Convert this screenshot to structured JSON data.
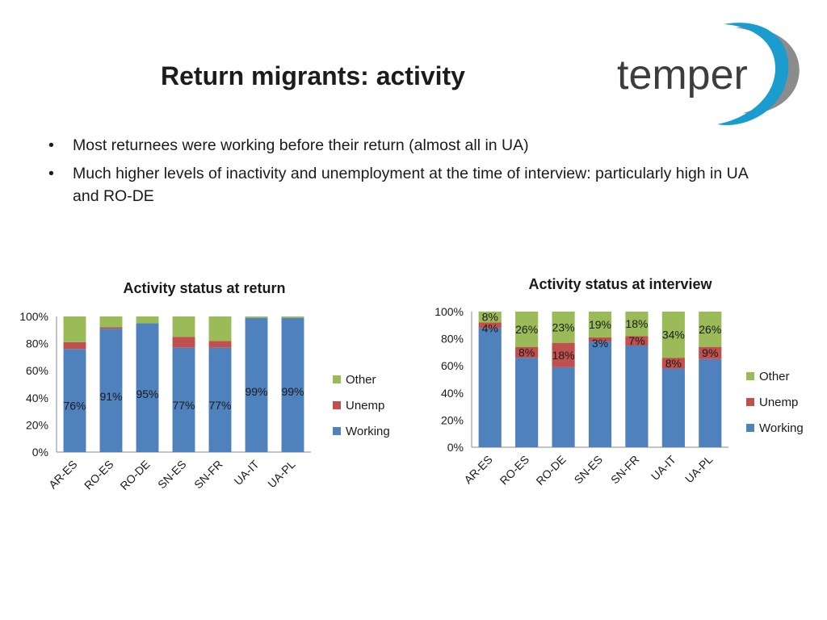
{
  "slide": {
    "title": "Return migrants: activity",
    "logo_text": "temper",
    "bullets": [
      "Most returnees were working before their return (almost all in UA)",
      "Much higher levels of inactivity and unemployment at the time of interview: particularly high in UA and RO-DE"
    ],
    "bullet_symbol": "•"
  },
  "colors": {
    "working": "#4f81bd",
    "unemp": "#c0504d",
    "other": "#9bbb59",
    "logo_text": "#3d3d3d",
    "logo_swoosh_blue": "#1a9ccf",
    "logo_swoosh_grey": "#8c8c8c"
  },
  "chart_data": [
    {
      "type": "bar",
      "stacked": true,
      "title": "Activity status at return",
      "categories": [
        "AR-ES",
        "RO-ES",
        "RO-DE",
        "SN-ES",
        "SN-FR",
        "UA-IT",
        "UA-PL"
      ],
      "series": [
        {
          "name": "Working",
          "values": [
            76,
            91,
            95,
            77,
            77,
            99,
            99
          ],
          "labels": [
            "76%",
            "91%",
            "95%",
            "77%",
            "77%",
            "99%",
            "99%"
          ]
        },
        {
          "name": "Unemp",
          "values": [
            5,
            1,
            0,
            8,
            5,
            0,
            0
          ],
          "labels": [
            "",
            "",
            "",
            "",
            "",
            "",
            ""
          ]
        },
        {
          "name": "Other",
          "values": [
            19,
            8,
            5,
            15,
            18,
            1,
            1
          ],
          "labels": [
            "",
            "",
            "",
            "",
            "",
            "",
            ""
          ]
        }
      ],
      "y_ticks": [
        "0%",
        "20%",
        "40%",
        "60%",
        "80%",
        "100%"
      ],
      "ylim": [
        0,
        100
      ],
      "grid": false,
      "legend_position": "right"
    },
    {
      "type": "bar",
      "stacked": true,
      "title": "Activity status at interview",
      "categories": [
        "AR-ES",
        "RO-ES",
        "RO-DE",
        "SN-ES",
        "SN-FR",
        "UA-IT",
        "UA-PL"
      ],
      "series": [
        {
          "name": "Working",
          "values": [
            88,
            66,
            59,
            78,
            75,
            58,
            65
          ],
          "labels": [
            "",
            "",
            "",
            "",
            "",
            "",
            ""
          ]
        },
        {
          "name": "Unemp",
          "values": [
            4,
            8,
            18,
            3,
            7,
            8,
            9
          ],
          "labels": [
            "4%",
            "8%",
            "18%",
            "3%",
            "7%",
            "8%",
            "9%"
          ]
        },
        {
          "name": "Other",
          "values": [
            8,
            26,
            23,
            19,
            18,
            34,
            26
          ],
          "labels": [
            "8%",
            "26%",
            "23%",
            "19%",
            "18%",
            "34%",
            "26%"
          ]
        }
      ],
      "y_ticks": [
        "0%",
        "20%",
        "40%",
        "60%",
        "80%",
        "100%"
      ],
      "ylim": [
        0,
        100
      ],
      "grid": false,
      "legend_position": "right"
    }
  ]
}
